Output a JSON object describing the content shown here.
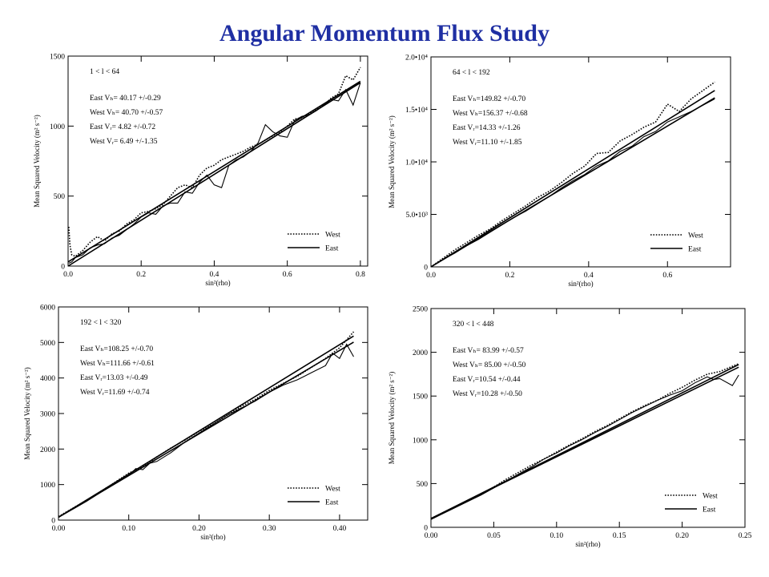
{
  "page": {
    "title": "Angular Momentum Flux Study"
  },
  "chart_data": [
    {
      "type": "line",
      "range_label": "1 < l < 64",
      "xlabel": "sin²(rho)",
      "ylabel": "Mean Squared Velocity (m² s⁻²)",
      "xlim": [
        0,
        0.82
      ],
      "ylim": [
        0,
        1500
      ],
      "x_ticks": [
        0,
        0.2,
        0.4,
        0.6,
        0.8
      ],
      "x_tick_labels": [
        "0.0",
        "0.2",
        "0.4",
        "0.6",
        "0.8"
      ],
      "y_ticks": [
        0,
        500,
        1000,
        1500
      ],
      "y_tick_labels": [
        "0",
        "500",
        "1000",
        "1500"
      ],
      "fit_lines": [
        {
          "x": [
            0,
            0.8
          ],
          "y": [
            0,
            1310
          ]
        },
        {
          "x": [
            0,
            0.8
          ],
          "y": [
            30,
            1320
          ]
        }
      ],
      "annotations": [
        "East Vₕ= 40.17 +/-0.29",
        "West Vₕ= 40.70 +/-0.57",
        "East Vᵣ= 4.82 +/-0.72",
        "West Vᵣ= 6.49 +/-1.35"
      ],
      "legend": {
        "position": "bottom-right",
        "entries": [
          "West",
          "East"
        ]
      },
      "series": [
        {
          "name": "West",
          "style": "dotted",
          "x": [
            0.002,
            0.005,
            0.01,
            0.02,
            0.04,
            0.06,
            0.08,
            0.1,
            0.12,
            0.14,
            0.16,
            0.18,
            0.2,
            0.22,
            0.24,
            0.26,
            0.28,
            0.3,
            0.32,
            0.34,
            0.36,
            0.38,
            0.4,
            0.42,
            0.44,
            0.46,
            0.48,
            0.5,
            0.52,
            0.54,
            0.56,
            0.58,
            0.6,
            0.62,
            0.64,
            0.66,
            0.68,
            0.7,
            0.72,
            0.74,
            0.76,
            0.78,
            0.8
          ],
          "y": [
            280,
            150,
            80,
            70,
            110,
            170,
            210,
            180,
            230,
            250,
            300,
            330,
            380,
            390,
            410,
            440,
            500,
            560,
            580,
            560,
            650,
            700,
            720,
            760,
            780,
            800,
            820,
            850,
            870,
            900,
            930,
            960,
            1000,
            1050,
            1060,
            1090,
            1120,
            1150,
            1200,
            1230,
            1360,
            1330,
            1420
          ]
        },
        {
          "name": "East",
          "style": "solid",
          "x": [
            0.002,
            0.01,
            0.02,
            0.04,
            0.06,
            0.08,
            0.1,
            0.12,
            0.14,
            0.16,
            0.18,
            0.2,
            0.22,
            0.24,
            0.26,
            0.28,
            0.3,
            0.32,
            0.34,
            0.36,
            0.38,
            0.4,
            0.42,
            0.44,
            0.46,
            0.48,
            0.5,
            0.52,
            0.54,
            0.56,
            0.58,
            0.6,
            0.62,
            0.64,
            0.66,
            0.68,
            0.7,
            0.72,
            0.74,
            0.76,
            0.78,
            0.8
          ],
          "y": [
            20,
            30,
            60,
            80,
            130,
            150,
            160,
            200,
            220,
            260,
            300,
            350,
            380,
            370,
            430,
            450,
            450,
            530,
            520,
            600,
            650,
            580,
            560,
            720,
            760,
            780,
            820,
            880,
            1010,
            960,
            930,
            920,
            1040,
            1070,
            1080,
            1110,
            1150,
            1190,
            1180,
            1260,
            1150,
            1310
          ]
        }
      ]
    },
    {
      "type": "line",
      "range_label": "64 < l < 192",
      "xlabel": "sin²(rho)",
      "ylabel": "Mean Squared Velocity (m² s⁻²)",
      "xlim": [
        0,
        0.76
      ],
      "ylim": [
        0,
        20000
      ],
      "x_ticks": [
        0,
        0.2,
        0.4,
        0.6
      ],
      "x_tick_labels": [
        "0.0",
        "0.2",
        "0.4",
        "0.6"
      ],
      "y_ticks": [
        0,
        5000,
        10000,
        15000,
        20000
      ],
      "y_tick_labels": [
        "0",
        "5.0•10³",
        "1.0•10⁴",
        "1.5•10⁴",
        "2.0•10⁴"
      ],
      "fit_lines": [
        {
          "x": [
            0,
            0.72
          ],
          "y": [
            0,
            16100
          ]
        },
        {
          "x": [
            0,
            0.72
          ],
          "y": [
            0,
            16800
          ]
        }
      ],
      "annotations": [
        "East Vₕ=149.82 +/-0.70",
        "West Vₕ=156.37 +/-0.68",
        "East Vᵣ=14.33 +/-1.26",
        "West Vᵣ=11.10 +/-1.85"
      ],
      "legend": {
        "position": "bottom-right",
        "entries": [
          "West",
          "East"
        ]
      },
      "series": [
        {
          "name": "West",
          "style": "dotted",
          "x": [
            0,
            0.03,
            0.06,
            0.09,
            0.12,
            0.15,
            0.18,
            0.21,
            0.24,
            0.27,
            0.3,
            0.33,
            0.36,
            0.39,
            0.42,
            0.45,
            0.48,
            0.51,
            0.54,
            0.57,
            0.6,
            0.63,
            0.66,
            0.69,
            0.72
          ],
          "y": [
            0,
            800,
            1600,
            2300,
            3000,
            3600,
            4400,
            5100,
            5800,
            6600,
            7200,
            8000,
            8900,
            9600,
            10800,
            10900,
            12000,
            12600,
            13300,
            13800,
            15500,
            14800,
            16000,
            16800,
            17600
          ]
        },
        {
          "name": "East",
          "style": "solid",
          "x": [
            0,
            0.03,
            0.06,
            0.09,
            0.12,
            0.15,
            0.18,
            0.21,
            0.24,
            0.27,
            0.3,
            0.33,
            0.36,
            0.39,
            0.42,
            0.45,
            0.48,
            0.51,
            0.54,
            0.57,
            0.6,
            0.63,
            0.66,
            0.69,
            0.72
          ],
          "y": [
            0,
            700,
            1300,
            2000,
            2600,
            3300,
            4000,
            4700,
            5300,
            6000,
            6700,
            7500,
            8200,
            8800,
            9600,
            10100,
            11000,
            11500,
            12400,
            12900,
            13800,
            14300,
            14800,
            15400,
            16000
          ]
        }
      ]
    },
    {
      "type": "line",
      "range_label": "192 < l < 320",
      "xlabel": "sin²(rho)",
      "ylabel": "Mean Squared Velocity (m² s⁻²)",
      "xlim": [
        0,
        0.44
      ],
      "ylim": [
        0,
        6000
      ],
      "x_ticks": [
        0,
        0.1,
        0.2,
        0.3,
        0.4
      ],
      "x_tick_labels": [
        "0.00",
        "0.10",
        "0.20",
        "0.30",
        "0.40"
      ],
      "y_ticks": [
        0,
        1000,
        2000,
        3000,
        4000,
        5000,
        6000
      ],
      "y_tick_labels": [
        "0",
        "1000",
        "2000",
        "3000",
        "4000",
        "5000",
        "6000"
      ],
      "fit_lines": [
        {
          "x": [
            0,
            0.42
          ],
          "y": [
            80,
            5010
          ]
        },
        {
          "x": [
            0,
            0.42
          ],
          "y": [
            80,
            5180
          ]
        }
      ],
      "annotations": [
        "East Vₕ=108.25 +/-0.70",
        "West Vₕ=111.66 +/-0.61",
        "East Vᵣ=13.03 +/-0.49",
        "West Vᵣ=11.69 +/-0.74"
      ],
      "legend": {
        "position": "bottom-right",
        "entries": [
          "West",
          "East"
        ]
      },
      "series": [
        {
          "name": "West",
          "style": "dotted",
          "x": [
            0,
            0.02,
            0.04,
            0.06,
            0.08,
            0.1,
            0.12,
            0.14,
            0.16,
            0.18,
            0.2,
            0.22,
            0.24,
            0.26,
            0.28,
            0.3,
            0.32,
            0.34,
            0.36,
            0.38,
            0.4,
            0.42
          ],
          "y": [
            100,
            330,
            560,
            800,
            1060,
            1320,
            1500,
            1780,
            2030,
            2250,
            2500,
            2700,
            2950,
            3200,
            3400,
            3650,
            3850,
            4050,
            4300,
            4550,
            4850,
            5300
          ]
        },
        {
          "name": "East",
          "style": "solid",
          "x": [
            0,
            0.02,
            0.04,
            0.06,
            0.08,
            0.1,
            0.11,
            0.12,
            0.13,
            0.14,
            0.16,
            0.18,
            0.2,
            0.22,
            0.24,
            0.26,
            0.28,
            0.3,
            0.32,
            0.34,
            0.36,
            0.38,
            0.39,
            0.4,
            0.41,
            0.42
          ],
          "y": [
            80,
            300,
            530,
            780,
            1020,
            1250,
            1450,
            1420,
            1600,
            1650,
            1900,
            2200,
            2450,
            2700,
            2950,
            3150,
            3350,
            3600,
            3800,
            3950,
            4150,
            4350,
            4700,
            4550,
            4950,
            4600
          ]
        }
      ]
    },
    {
      "type": "line",
      "range_label": "320 < l < 448",
      "xlabel": "sin²(rho)",
      "ylabel": "Mean Squared Velocity (m² s⁻²)",
      "xlim": [
        0,
        0.25
      ],
      "ylim": [
        0,
        2500
      ],
      "x_ticks": [
        0,
        0.05,
        0.1,
        0.15,
        0.2,
        0.25
      ],
      "x_tick_labels": [
        "0.00",
        "0.05",
        "0.10",
        "0.15",
        "0.20",
        "0.25"
      ],
      "y_ticks": [
        0,
        500,
        1000,
        1500,
        2000,
        2500
      ],
      "y_tick_labels": [
        "0",
        "500",
        "1000",
        "1500",
        "2000",
        "2500"
      ],
      "fit_lines": [
        {
          "x": [
            0,
            0.245
          ],
          "y": [
            100,
            1830
          ]
        },
        {
          "x": [
            0,
            0.245
          ],
          "y": [
            100,
            1860
          ]
        }
      ],
      "annotations": [
        "East Vₕ= 83.99 +/-0.57",
        "West Vₕ= 85.00 +/-0.50",
        "East Vᵣ=10.54 +/-0.44",
        "West Vᵣ=10.28 +/-0.50"
      ],
      "legend": {
        "position": "bottom-right",
        "entries": [
          "West",
          "East"
        ]
      },
      "series": [
        {
          "name": "West",
          "style": "dotted",
          "x": [
            0,
            0.01,
            0.02,
            0.03,
            0.04,
            0.05,
            0.06,
            0.07,
            0.08,
            0.09,
            0.1,
            0.11,
            0.12,
            0.13,
            0.14,
            0.15,
            0.16,
            0.17,
            0.18,
            0.19,
            0.2,
            0.21,
            0.22,
            0.23,
            0.24,
            0.245
          ],
          "y": [
            100,
            170,
            240,
            310,
            380,
            460,
            550,
            630,
            710,
            780,
            860,
            940,
            1010,
            1090,
            1160,
            1240,
            1320,
            1390,
            1450,
            1530,
            1600,
            1680,
            1750,
            1780,
            1840,
            1870
          ]
        },
        {
          "name": "East",
          "style": "solid",
          "x": [
            0,
            0.01,
            0.02,
            0.03,
            0.04,
            0.05,
            0.06,
            0.07,
            0.08,
            0.09,
            0.1,
            0.11,
            0.12,
            0.13,
            0.14,
            0.15,
            0.16,
            0.17,
            0.18,
            0.19,
            0.2,
            0.21,
            0.22,
            0.225,
            0.23,
            0.24,
            0.245
          ],
          "y": [
            90,
            160,
            230,
            300,
            370,
            450,
            530,
            610,
            690,
            780,
            850,
            930,
            1000,
            1080,
            1150,
            1230,
            1310,
            1380,
            1450,
            1510,
            1560,
            1650,
            1720,
            1690,
            1700,
            1620,
            1740
          ]
        }
      ]
    }
  ]
}
